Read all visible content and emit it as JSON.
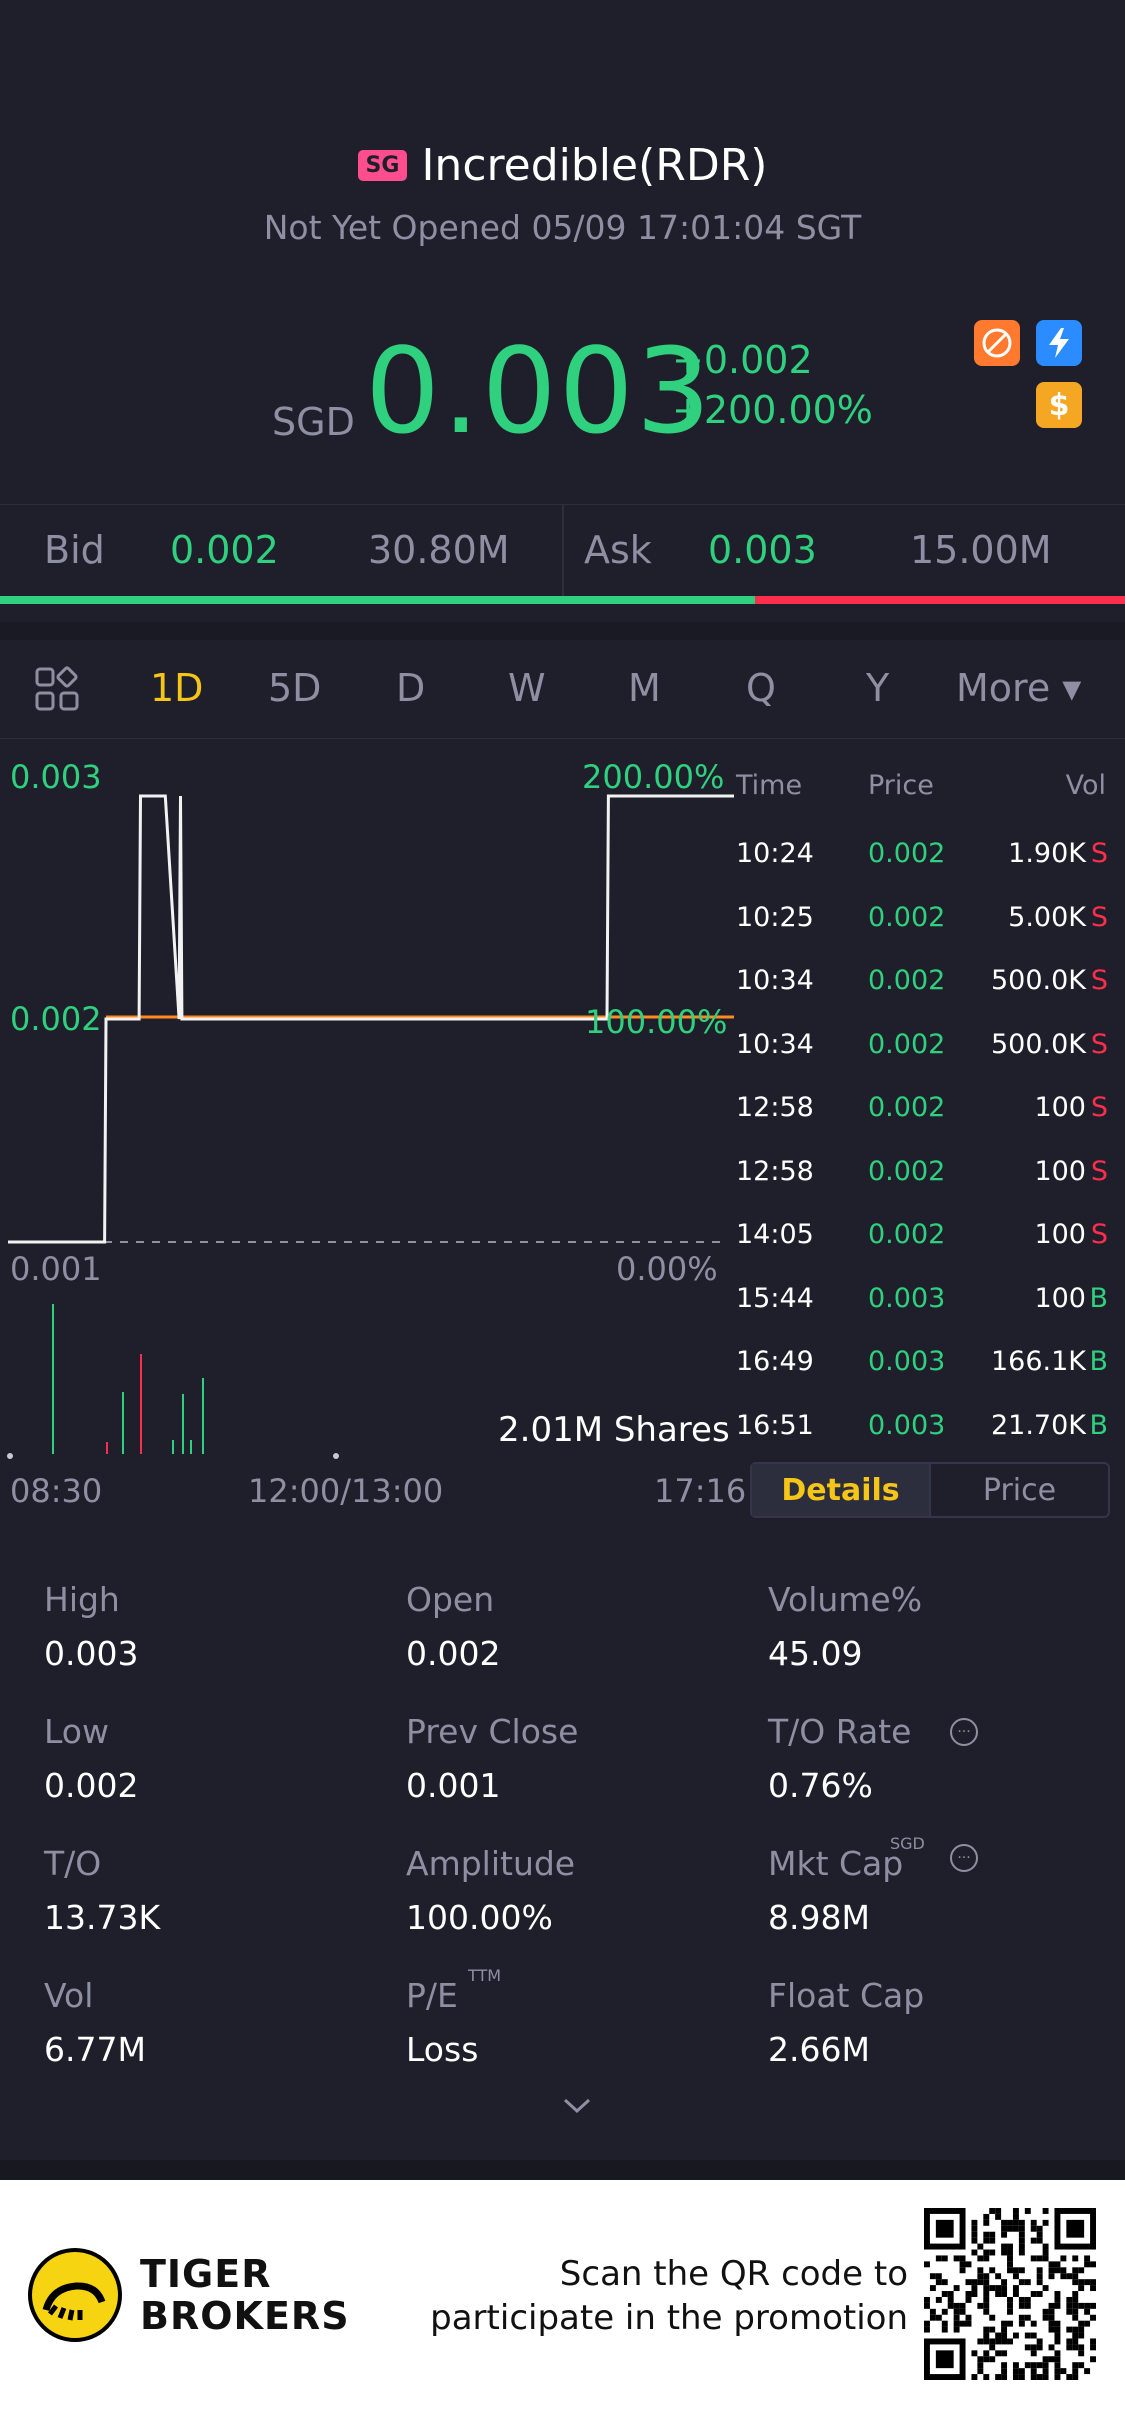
{
  "header": {
    "market_badge": "SG",
    "name": "Incredible(RDR)",
    "status": "Not Yet Opened 05/09 17:01:04 SGT",
    "currency": "SGD",
    "price": "0.003",
    "change_abs": "+0.002",
    "change_pct": "+200.00%",
    "icons": [
      "no-short-icon",
      "flash-icon",
      "dollar-icon"
    ],
    "dollar_glyph": "$"
  },
  "bidask": {
    "bid_label": "Bid",
    "bid_price": "0.002",
    "bid_size": "30.80M",
    "ask_label": "Ask",
    "ask_price": "0.003",
    "ask_size": "15.00M",
    "bid_fraction": 0.671
  },
  "tabs": [
    "1D",
    "5D",
    "D",
    "W",
    "M",
    "Q",
    "Y",
    "More ▾"
  ],
  "active_tab": "1D",
  "chart": {
    "left_top": "0.003",
    "left_mid": "0.002",
    "left_bottom": "0.001",
    "right_top": "200.00%",
    "right_mid": "100.00%",
    "right_bottom": "0.00%",
    "volume_label": "2.01M Shares",
    "time_start": "08:30",
    "time_mid": "12:00/13:00",
    "time_end": "17:16"
  },
  "chart_data": {
    "type": "line",
    "x_range": [
      "08:30",
      "17:16"
    ],
    "ylim": [
      0.001,
      0.003
    ],
    "prev_close": 0.001,
    "series": [
      {
        "x": [
          "08:30",
          "09:40",
          "09:41",
          "10:05",
          "10:06",
          "10:24",
          "10:34",
          "10:35",
          "10:36",
          "15:44",
          "15:45",
          "17:16"
        ],
        "values": [
          0.001,
          0.001,
          0.002,
          0.002,
          0.003,
          0.003,
          0.002,
          0.003,
          0.002,
          0.002,
          0.003,
          0.003
        ]
      }
    ],
    "volume_bars_colors": [
      "green",
      "red",
      "green",
      "red",
      "green",
      "green",
      "green",
      "green"
    ]
  },
  "trades": {
    "headers": [
      "Time",
      "Price",
      "Vol"
    ],
    "rows": [
      {
        "time": "10:24",
        "price": "0.002",
        "vol": "1.90K",
        "side": "S"
      },
      {
        "time": "10:25",
        "price": "0.002",
        "vol": "5.00K",
        "side": "S"
      },
      {
        "time": "10:34",
        "price": "0.002",
        "vol": "500.0K",
        "side": "S"
      },
      {
        "time": "10:34",
        "price": "0.002",
        "vol": "500.0K",
        "side": "S"
      },
      {
        "time": "12:58",
        "price": "0.002",
        "vol": "100",
        "side": "S"
      },
      {
        "time": "12:58",
        "price": "0.002",
        "vol": "100",
        "side": "S"
      },
      {
        "time": "14:05",
        "price": "0.002",
        "vol": "100",
        "side": "S"
      },
      {
        "time": "15:44",
        "price": "0.003",
        "vol": "100",
        "side": "B"
      },
      {
        "time": "16:49",
        "price": "0.003",
        "vol": "166.1K",
        "side": "B"
      },
      {
        "time": "16:51",
        "price": "0.003",
        "vol": "21.70K",
        "side": "B"
      }
    ]
  },
  "toggle": {
    "details": "Details",
    "price": "Price"
  },
  "stats": {
    "high_label": "High",
    "high": "0.003",
    "open_label": "Open",
    "open": "0.002",
    "volpct_label": "Volume%",
    "volpct": "45.09",
    "low_label": "Low",
    "low": "0.002",
    "prevclose_label": "Prev Close",
    "prevclose": "0.001",
    "torate_label": "T/O Rate",
    "torate": "0.76%",
    "to_label": "T/O",
    "to": "13.73K",
    "amplitude_label": "Amplitude",
    "amplitude": "100.00%",
    "mktcap_label": "Mkt Cap",
    "mktcap_sup": "SGD",
    "mktcap": "8.98M",
    "vol_label": "Vol",
    "vol": "6.77M",
    "pe_label": "P/E",
    "pe_sup": "TTM",
    "pe": "Loss",
    "floatcap_label": "Float Cap",
    "floatcap": "2.66M",
    "info_glyph": "···"
  },
  "footer": {
    "brand_line1": "TIGER",
    "brand_line2": "BROKERS",
    "promo_line1": "Scan the QR code to",
    "promo_line2": "participate in the promotion"
  },
  "colors": {
    "up": "#2fd07e",
    "down": "#ff2e4d",
    "accent": "#f5c518",
    "background": "#1f1f2b"
  }
}
